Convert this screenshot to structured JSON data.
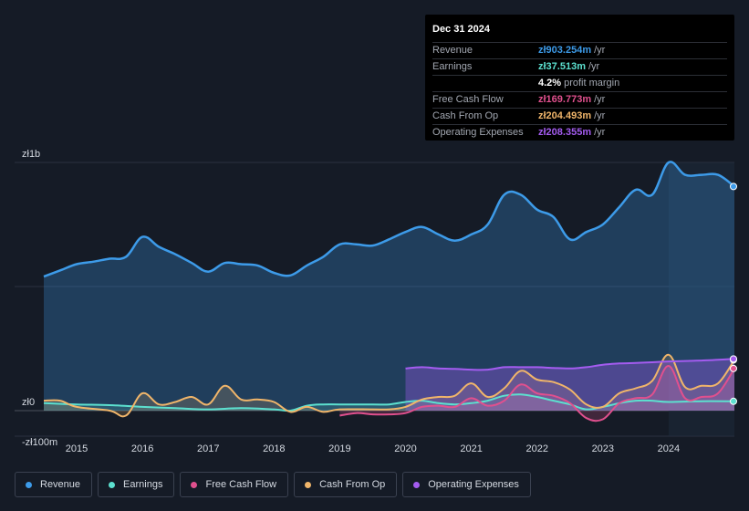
{
  "tooltip": {
    "date": "Dec 31 2024",
    "rows": [
      {
        "label": "Revenue",
        "value": "zł903.254m",
        "unit": "/yr",
        "color": "#3d9be9"
      },
      {
        "label": "Earnings",
        "value": "zł37.513m",
        "unit": "/yr",
        "color": "#5ce0cf"
      },
      {
        "margin_pct": "4.2%",
        "margin_text": "profit margin"
      },
      {
        "label": "Free Cash Flow",
        "value": "zł169.773m",
        "unit": "/yr",
        "color": "#e0508e"
      },
      {
        "label": "Cash From Op",
        "value": "zł204.493m",
        "unit": "/yr",
        "color": "#f0b56a"
      },
      {
        "label": "Operating Expenses",
        "value": "zł208.355m",
        "unit": "/yr",
        "color": "#a45cf0"
      }
    ]
  },
  "legend": [
    {
      "label": "Revenue",
      "color": "#3d9be9"
    },
    {
      "label": "Earnings",
      "color": "#5ce0cf"
    },
    {
      "label": "Free Cash Flow",
      "color": "#e0508e"
    },
    {
      "label": "Cash From Op",
      "color": "#f0b56a"
    },
    {
      "label": "Operating Expenses",
      "color": "#a45cf0"
    }
  ],
  "chart_data": {
    "type": "area",
    "title": "",
    "xlabel": "",
    "ylabel": "",
    "y_tick_labels": [
      {
        "label": "zł1b",
        "value": 1000
      },
      {
        "label": "zł0",
        "value": 0
      },
      {
        "label": "-zł100m",
        "value": -100
      }
    ],
    "ylim": [
      -100,
      1000
    ],
    "xlim": [
      2014.5,
      2025.0
    ],
    "x_ticks": [
      2015,
      2016,
      2017,
      2018,
      2019,
      2020,
      2021,
      2022,
      2023,
      2024
    ],
    "highlight_from": 2024.0,
    "series": [
      {
        "name": "Revenue",
        "color": "#3d9be9",
        "points": [
          [
            2014.5,
            540
          ],
          [
            2014.75,
            565
          ],
          [
            2015.0,
            590
          ],
          [
            2015.25,
            600
          ],
          [
            2015.5,
            612
          ],
          [
            2015.75,
            620
          ],
          [
            2016.0,
            700
          ],
          [
            2016.25,
            660
          ],
          [
            2016.5,
            630
          ],
          [
            2016.75,
            595
          ],
          [
            2017.0,
            560
          ],
          [
            2017.25,
            595
          ],
          [
            2017.5,
            590
          ],
          [
            2017.75,
            585
          ],
          [
            2018.0,
            555
          ],
          [
            2018.25,
            545
          ],
          [
            2018.5,
            585
          ],
          [
            2018.75,
            620
          ],
          [
            2019.0,
            670
          ],
          [
            2019.25,
            670
          ],
          [
            2019.5,
            665
          ],
          [
            2019.75,
            690
          ],
          [
            2020.0,
            720
          ],
          [
            2020.25,
            740
          ],
          [
            2020.5,
            710
          ],
          [
            2020.75,
            685
          ],
          [
            2021.0,
            710
          ],
          [
            2021.25,
            750
          ],
          [
            2021.5,
            870
          ],
          [
            2021.75,
            870
          ],
          [
            2022.0,
            810
          ],
          [
            2022.25,
            780
          ],
          [
            2022.5,
            690
          ],
          [
            2022.75,
            720
          ],
          [
            2023.0,
            750
          ],
          [
            2023.25,
            820
          ],
          [
            2023.5,
            890
          ],
          [
            2023.75,
            870
          ],
          [
            2024.0,
            1000
          ],
          [
            2024.25,
            950
          ],
          [
            2024.5,
            950
          ],
          [
            2024.75,
            950
          ],
          [
            2025.0,
            903
          ]
        ]
      },
      {
        "name": "Earnings",
        "color": "#5ce0cf",
        "points": [
          [
            2014.5,
            30
          ],
          [
            2015.0,
            25
          ],
          [
            2015.5,
            22
          ],
          [
            2016.0,
            15
          ],
          [
            2016.5,
            10
          ],
          [
            2017.0,
            5
          ],
          [
            2017.5,
            10
          ],
          [
            2018.0,
            5
          ],
          [
            2018.25,
            0
          ],
          [
            2018.5,
            20
          ],
          [
            2018.75,
            25
          ],
          [
            2019.0,
            25
          ],
          [
            2019.5,
            25
          ],
          [
            2019.75,
            25
          ],
          [
            2020.0,
            35
          ],
          [
            2020.25,
            40
          ],
          [
            2020.5,
            30
          ],
          [
            2020.75,
            25
          ],
          [
            2021.0,
            30
          ],
          [
            2021.25,
            40
          ],
          [
            2021.5,
            60
          ],
          [
            2021.75,
            65
          ],
          [
            2022.0,
            55
          ],
          [
            2022.25,
            40
          ],
          [
            2022.5,
            25
          ],
          [
            2022.75,
            5
          ],
          [
            2023.0,
            15
          ],
          [
            2023.25,
            30
          ],
          [
            2023.5,
            40
          ],
          [
            2023.75,
            40
          ],
          [
            2024.0,
            35
          ],
          [
            2024.5,
            38
          ],
          [
            2025.0,
            37.5
          ]
        ]
      },
      {
        "name": "Free Cash Flow",
        "color": "#e0508e",
        "points": [
          [
            2019.0,
            -20
          ],
          [
            2019.25,
            -10
          ],
          [
            2019.5,
            -15
          ],
          [
            2019.75,
            -15
          ],
          [
            2020.0,
            -10
          ],
          [
            2020.25,
            15
          ],
          [
            2020.5,
            20
          ],
          [
            2020.75,
            15
          ],
          [
            2021.0,
            50
          ],
          [
            2021.25,
            20
          ],
          [
            2021.5,
            40
          ],
          [
            2021.75,
            105
          ],
          [
            2022.0,
            70
          ],
          [
            2022.25,
            60
          ],
          [
            2022.5,
            30
          ],
          [
            2022.75,
            -30
          ],
          [
            2023.0,
            -35
          ],
          [
            2023.25,
            30
          ],
          [
            2023.5,
            50
          ],
          [
            2023.75,
            65
          ],
          [
            2024.0,
            180
          ],
          [
            2024.25,
            50
          ],
          [
            2024.5,
            55
          ],
          [
            2024.75,
            70
          ],
          [
            2025.0,
            169.8
          ]
        ]
      },
      {
        "name": "Cash From Op",
        "color": "#f0b56a",
        "points": [
          [
            2014.5,
            40
          ],
          [
            2014.75,
            40
          ],
          [
            2015.0,
            15
          ],
          [
            2015.5,
            0
          ],
          [
            2015.75,
            -20
          ],
          [
            2016.0,
            70
          ],
          [
            2016.25,
            25
          ],
          [
            2016.5,
            35
          ],
          [
            2016.75,
            55
          ],
          [
            2017.0,
            25
          ],
          [
            2017.25,
            100
          ],
          [
            2017.5,
            45
          ],
          [
            2017.75,
            45
          ],
          [
            2018.0,
            35
          ],
          [
            2018.25,
            -5
          ],
          [
            2018.5,
            15
          ],
          [
            2018.75,
            -5
          ],
          [
            2019.0,
            5
          ],
          [
            2019.5,
            5
          ],
          [
            2019.75,
            5
          ],
          [
            2020.0,
            15
          ],
          [
            2020.25,
            45
          ],
          [
            2020.5,
            55
          ],
          [
            2020.75,
            60
          ],
          [
            2021.0,
            110
          ],
          [
            2021.25,
            55
          ],
          [
            2021.5,
            90
          ],
          [
            2021.75,
            160
          ],
          [
            2022.0,
            125
          ],
          [
            2022.25,
            115
          ],
          [
            2022.5,
            85
          ],
          [
            2022.75,
            25
          ],
          [
            2023.0,
            15
          ],
          [
            2023.25,
            70
          ],
          [
            2023.5,
            90
          ],
          [
            2023.75,
            120
          ],
          [
            2024.0,
            225
          ],
          [
            2024.25,
            95
          ],
          [
            2024.5,
            100
          ],
          [
            2024.75,
            110
          ],
          [
            2025.0,
            204.5
          ]
        ]
      },
      {
        "name": "Operating Expenses",
        "color": "#a45cf0",
        "points": [
          [
            2020.0,
            170
          ],
          [
            2020.25,
            175
          ],
          [
            2020.5,
            170
          ],
          [
            2020.75,
            168
          ],
          [
            2021.0,
            165
          ],
          [
            2021.25,
            165
          ],
          [
            2021.5,
            175
          ],
          [
            2021.75,
            175
          ],
          [
            2022.0,
            175
          ],
          [
            2022.25,
            172
          ],
          [
            2022.5,
            170
          ],
          [
            2022.75,
            175
          ],
          [
            2023.0,
            185
          ],
          [
            2023.25,
            190
          ],
          [
            2023.5,
            192
          ],
          [
            2023.75,
            195
          ],
          [
            2024.0,
            198
          ],
          [
            2024.25,
            200
          ],
          [
            2024.5,
            202
          ],
          [
            2024.75,
            205
          ],
          [
            2025.0,
            208.4
          ]
        ]
      }
    ]
  }
}
